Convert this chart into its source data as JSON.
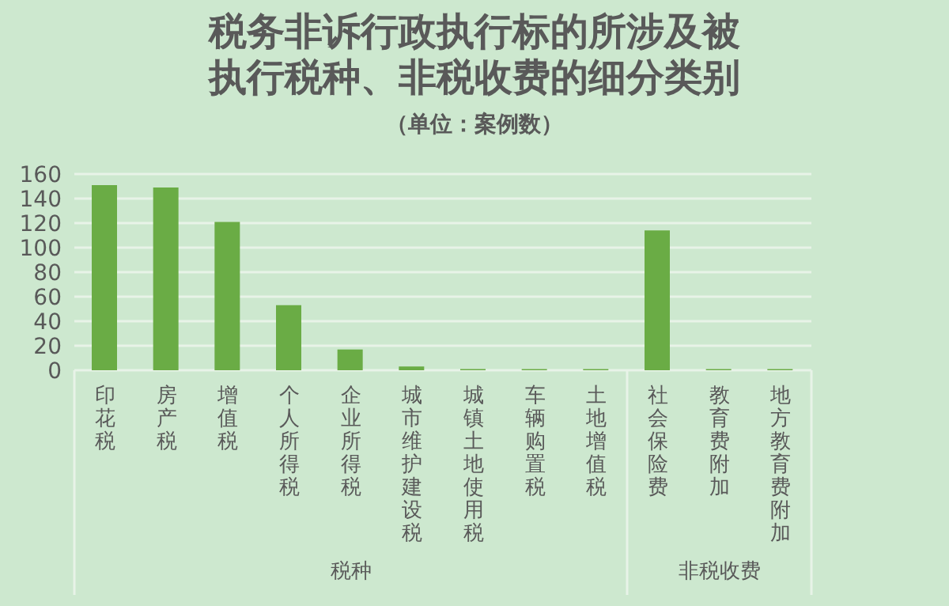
{
  "chart_data": {
    "type": "bar",
    "title": "税务非诉行政执行标的所涉及被执行税种、非税收费的细分类别",
    "subtitle": "（单位：案例数）",
    "categories": [
      "印花税",
      "房产税",
      "增值税",
      "个人所得税",
      "企业所得税",
      "城市维护建设税",
      "城镇土地使用税",
      "车辆购置税",
      "土地增值税",
      "社会保险费",
      "教育费附加",
      "地方教育费附加"
    ],
    "values": [
      151,
      149,
      121,
      53,
      17,
      3,
      1,
      1,
      1,
      114,
      1,
      1
    ],
    "color": "#6aac45",
    "ylim": [
      0,
      160
    ],
    "yticks": [
      0,
      20,
      40,
      60,
      80,
      100,
      120,
      140,
      160
    ],
    "grid": "y",
    "legend": false,
    "annotations": [
      "税种",
      "非税收费"
    ]
  }
}
